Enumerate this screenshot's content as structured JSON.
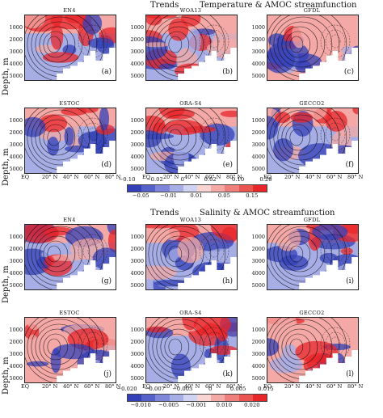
{
  "section1": {
    "trends": "Trends",
    "title": "Temperature & AMOC streamfunction",
    "panels": [
      {
        "name": "EN4",
        "letter": "(a)"
      },
      {
        "name": "WOA13",
        "letter": "(b)"
      },
      {
        "name": "GFDL",
        "letter": "(c)"
      },
      {
        "name": "ESTOC",
        "letter": "(d)"
      },
      {
        "name": "ORA-S4",
        "letter": "(e)"
      },
      {
        "name": "GECCO2",
        "letter": "(f)"
      }
    ],
    "colorbar_top": [
      "−0.10",
      "−0.02",
      "0",
      "0.02",
      "0.10",
      "0.20"
    ],
    "colorbar_bottom": [
      "−0.05",
      "−0.01",
      "0.01",
      "0.05",
      "0.15"
    ]
  },
  "section2": {
    "trends": "Trends",
    "title": "Salinity & AMOC streamfunction",
    "panels": [
      {
        "name": "EN4",
        "letter": "(g)"
      },
      {
        "name": "WOA13",
        "letter": "(h)"
      },
      {
        "name": "GFDL",
        "letter": "(i)"
      },
      {
        "name": "ESTOC",
        "letter": "(j)"
      },
      {
        "name": "ORA-S4",
        "letter": "(k)"
      },
      {
        "name": "GECCO2",
        "letter": "(l)"
      }
    ],
    "colorbar_top": [
      "−0.020",
      "−0.007",
      "−0.003",
      "0",
      "0.005",
      "0.015"
    ],
    "colorbar_bottom": [
      "−0.010",
      "−0.005",
      "−0.001",
      "0.010",
      "0.020"
    ]
  },
  "axes": {
    "ylabel": "Depth, m",
    "depth_ticks": [
      "1000",
      "2000",
      "3000",
      "4000",
      "5000"
    ],
    "lat_ticks": [
      "EQ",
      "20° N",
      "40° N",
      "60° N",
      "80° N"
    ]
  },
  "colors": {
    "red_strong": "#e8262a",
    "red_light": "#f4a9a6",
    "blue_strong": "#3340b8",
    "blue_light": "#a7aee6",
    "white": "#ffffff"
  }
}
